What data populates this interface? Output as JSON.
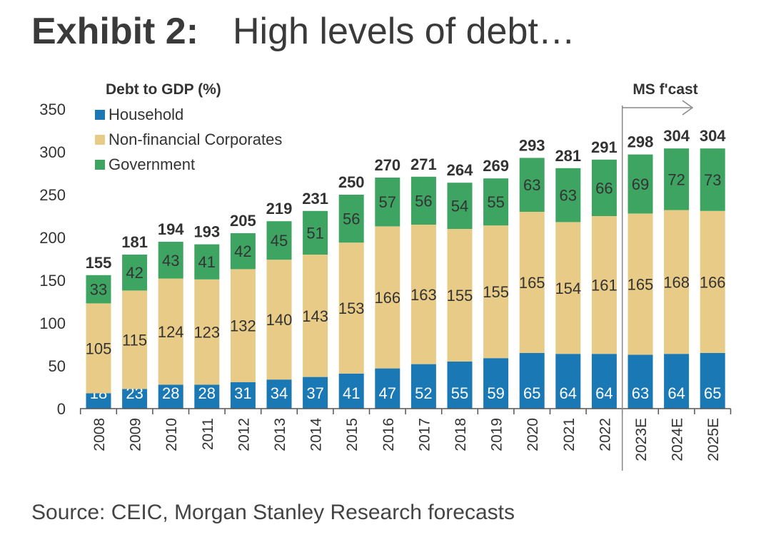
{
  "header": {
    "exhibit": "Exhibit 2:",
    "title": "High levels of debt…"
  },
  "footer": {
    "source": "Source: CEIC, Morgan Stanley Research forecasts"
  },
  "chart_data": {
    "type": "bar",
    "stacked": true,
    "ylabel": "Debt to GDP (%)",
    "ylim": [
      0,
      350
    ],
    "yticks": [
      0,
      50,
      100,
      150,
      200,
      250,
      300,
      350
    ],
    "categories": [
      "2008",
      "2009",
      "2010",
      "2011",
      "2012",
      "2013",
      "2014",
      "2015",
      "2016",
      "2017",
      "2018",
      "2019",
      "2020",
      "2021",
      "2022",
      "2023E",
      "2024E",
      "2025E"
    ],
    "totals": [
      155,
      181,
      194,
      193,
      205,
      219,
      231,
      250,
      270,
      271,
      264,
      269,
      293,
      281,
      291,
      298,
      304,
      304
    ],
    "series": [
      {
        "name": "Household",
        "color": "#1a78b4",
        "values": [
          18,
          23,
          28,
          28,
          31,
          34,
          37,
          41,
          47,
          52,
          55,
          59,
          65,
          64,
          64,
          63,
          64,
          65
        ]
      },
      {
        "name": "Non-financial Corporates",
        "color": "#e8cb86",
        "values": [
          105,
          115,
          124,
          123,
          132,
          140,
          143,
          153,
          166,
          163,
          155,
          155,
          165,
          154,
          161,
          165,
          168,
          166
        ]
      },
      {
        "name": "Government",
        "color": "#3da461",
        "values": [
          33,
          42,
          43,
          41,
          42,
          45,
          51,
          56,
          57,
          56,
          54,
          55,
          63,
          63,
          66,
          69,
          72,
          73
        ]
      }
    ],
    "legend": "top-left",
    "grid": false,
    "annotation": {
      "text": "MS f'cast",
      "from_category": "2023E"
    }
  }
}
